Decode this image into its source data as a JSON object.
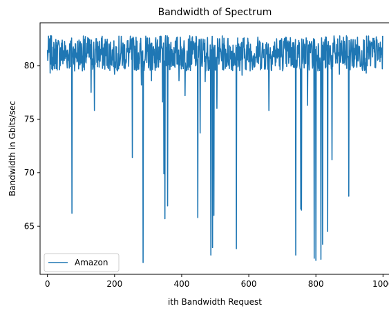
{
  "chart_data": {
    "type": "line",
    "title": "Bandwidth of Spectrum",
    "xlabel": "ith Bandwidth Request",
    "ylabel": "Bandwidth in Gbits/sec",
    "xlim": [
      -22,
      1022
    ],
    "ylim": [
      60.5,
      84.0
    ],
    "xticks": [
      0,
      200,
      400,
      600,
      800,
      1000
    ],
    "yticks": [
      65,
      70,
      75,
      80
    ],
    "grid": false,
    "legend": {
      "location": "lower-left"
    },
    "series": [
      {
        "name": "Amazon",
        "color": "#1f77b4",
        "baseline": {
          "n": 1000,
          "min": 79.5,
          "max": 82.8,
          "seed": 7
        },
        "drops": [
          [
            8,
            79.3
          ],
          [
            18,
            80.0
          ],
          [
            73,
            66.2
          ],
          [
            110,
            79.6
          ],
          [
            130,
            77.5
          ],
          [
            140,
            75.8
          ],
          [
            200,
            79.2
          ],
          [
            253,
            71.4
          ],
          [
            280,
            78.2
          ],
          [
            285,
            61.6
          ],
          [
            296,
            80.3
          ],
          [
            310,
            78.6
          ],
          [
            343,
            76.6
          ],
          [
            347,
            69.9
          ],
          [
            350,
            65.7
          ],
          [
            358,
            66.9
          ],
          [
            392,
            78.6
          ],
          [
            410,
            77.2
          ],
          [
            448,
            65.8
          ],
          [
            455,
            73.7
          ],
          [
            470,
            78.5
          ],
          [
            487,
            62.3
          ],
          [
            492,
            63.0
          ],
          [
            496,
            66.0
          ],
          [
            505,
            76.0
          ],
          [
            563,
            62.9
          ],
          [
            580,
            79.1
          ],
          [
            660,
            75.8
          ],
          [
            740,
            62.3
          ],
          [
            755,
            66.6
          ],
          [
            757,
            66.5
          ],
          [
            775,
            76.3
          ],
          [
            795,
            62.0
          ],
          [
            800,
            61.8
          ],
          [
            815,
            61.9
          ],
          [
            820,
            63.3
          ],
          [
            835,
            64.5
          ],
          [
            848,
            71.2
          ],
          [
            870,
            79.2
          ],
          [
            898,
            67.8
          ],
          [
            950,
            79.3
          ]
        ]
      }
    ]
  }
}
